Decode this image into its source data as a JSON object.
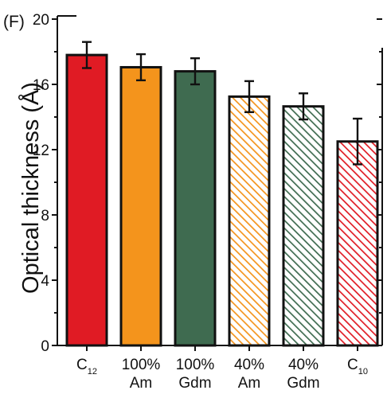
{
  "panel_label": "(F)",
  "colors": {
    "c12": "#e01b24",
    "am": "#f4941c",
    "gdm": "#3f6b50",
    "axis": "#111111"
  },
  "chart_data": {
    "type": "bar",
    "title": "",
    "xlabel": "",
    "ylabel": "Optical thickness (Å)",
    "ylim": [
      0,
      20
    ],
    "yticks": [
      "0",
      "4",
      "8",
      "12",
      "16",
      "20"
    ],
    "grid": false,
    "legend": "none",
    "categories": [
      {
        "line1": "C",
        "sub": "12",
        "line2": ""
      },
      {
        "line1": "100%",
        "sub": "",
        "line2": "Am"
      },
      {
        "line1": "100%",
        "sub": "",
        "line2": "Gdm"
      },
      {
        "line1": "40%",
        "sub": "",
        "line2": "Am"
      },
      {
        "line1": "40%",
        "sub": "",
        "line2": "Gdm"
      },
      {
        "line1": "C",
        "sub": "10",
        "line2": ""
      }
    ],
    "values": [
      17.8,
      17.05,
      16.8,
      15.25,
      14.65,
      12.5
    ],
    "errors": [
      0.8,
      0.8,
      0.8,
      0.95,
      0.8,
      1.4
    ],
    "fills": [
      "solid",
      "solid",
      "solid",
      "hatched",
      "hatched",
      "hatched"
    ],
    "bar_colors": [
      "#e01b24",
      "#f4941c",
      "#3f6b50",
      "#f4941c",
      "#3f6b50",
      "#e01b24"
    ]
  }
}
